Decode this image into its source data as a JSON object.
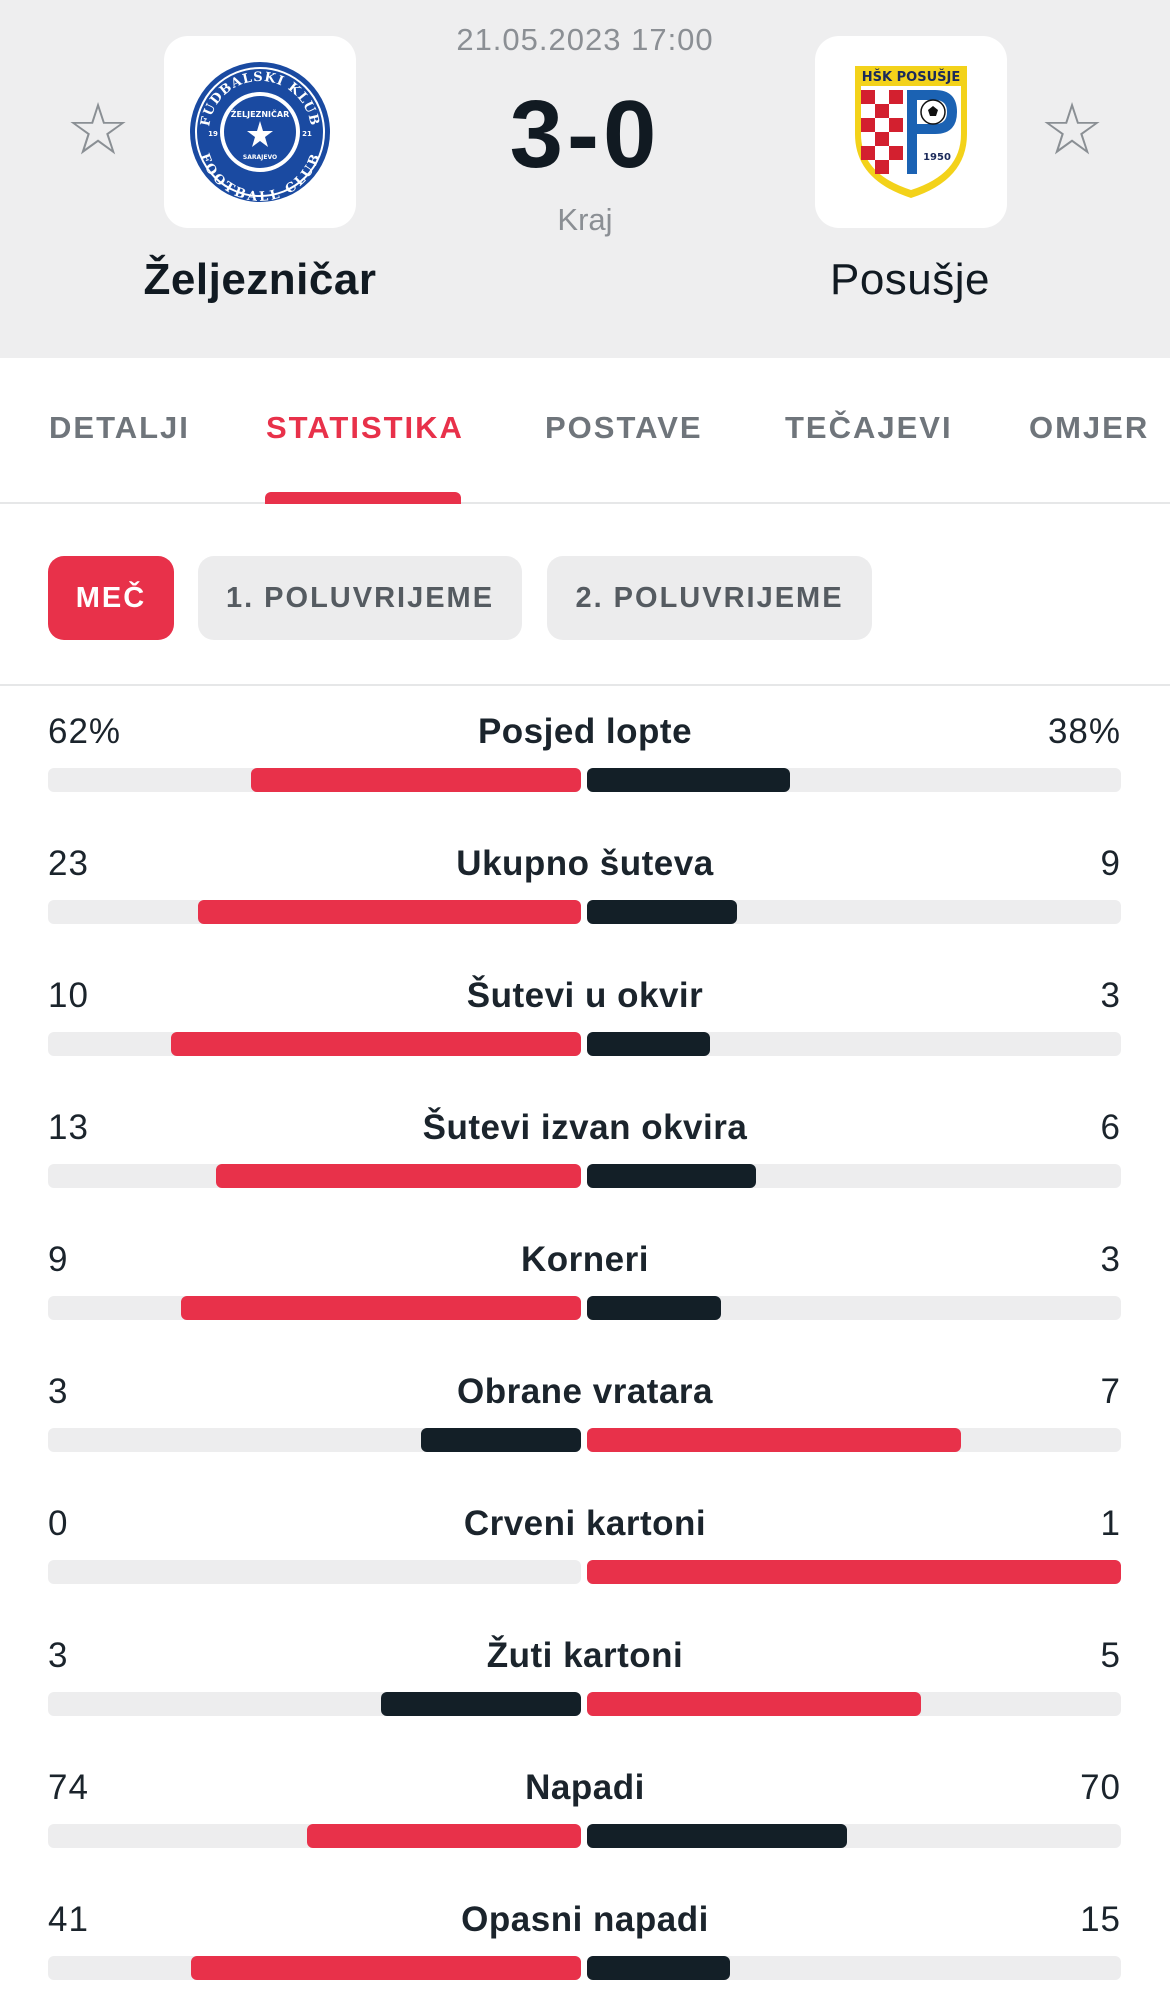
{
  "match": {
    "datetime": "21.05.2023 17:00",
    "score": "3-0",
    "status": "Kraj",
    "home_team": "Željezničar",
    "away_team": "Posušje",
    "home_logo": {
      "ring_text_top": "FUDBALSKI KLUB",
      "ring_text_bottom": "FOOTBALL CLUB",
      "center_text": "ŽELJEZNIČAR",
      "city": "SARAJEVO",
      "year_left": "19",
      "year_right": "21",
      "color": "#1a4aa1"
    },
    "away_logo": {
      "banner_text": "HŠK POSUŠJE",
      "year": "1950",
      "colors": {
        "red": "#d3202f",
        "yellow": "#f3d21a",
        "blue": "#1b62b3"
      }
    }
  },
  "tabs": [
    {
      "label": "DETALJI"
    },
    {
      "label": "STATISTIKA"
    },
    {
      "label": "POSTAVE"
    },
    {
      "label": "TEČAJEVI"
    },
    {
      "label": "OMJER"
    }
  ],
  "active_tab": "STATISTIKA",
  "periods": [
    {
      "label": "MEČ"
    },
    {
      "label": "1. POLUVRIJEME"
    },
    {
      "label": "2. POLUVRIJEME"
    }
  ],
  "active_period": "MEČ",
  "colors": {
    "accent": "#e8314a",
    "dark_bar": "#131f27",
    "track": "#ededee"
  },
  "stats": [
    {
      "label": "Posjed lopte",
      "home": "62%",
      "away": "38%",
      "home_value": 62,
      "away_value": 38,
      "leader": "home",
      "scale": 100
    },
    {
      "label": "Ukupno šuteva",
      "home": "23",
      "away": "9",
      "home_value": 23,
      "away_value": 9,
      "leader": "home"
    },
    {
      "label": "Šutevi u okvir",
      "home": "10",
      "away": "3",
      "home_value": 10,
      "away_value": 3,
      "leader": "home"
    },
    {
      "label": "Šutevi izvan okvira",
      "home": "13",
      "away": "6",
      "home_value": 13,
      "away_value": 6,
      "leader": "home"
    },
    {
      "label": "Korneri",
      "home": "9",
      "away": "3",
      "home_value": 9,
      "away_value": 3,
      "leader": "home"
    },
    {
      "label": "Obrane vratara",
      "home": "3",
      "away": "7",
      "home_value": 3,
      "away_value": 7,
      "leader": "away"
    },
    {
      "label": "Crveni kartoni",
      "home": "0",
      "away": "1",
      "home_value": 0,
      "away_value": 1,
      "leader": "away"
    },
    {
      "label": "Žuti kartoni",
      "home": "3",
      "away": "5",
      "home_value": 3,
      "away_value": 5,
      "leader": "away"
    },
    {
      "label": "Napadi",
      "home": "74",
      "away": "70",
      "home_value": 74,
      "away_value": 70,
      "leader": "home"
    },
    {
      "label": "Opasni napadi",
      "home": "41",
      "away": "15",
      "home_value": 41,
      "away_value": 15,
      "leader": "home"
    }
  ]
}
